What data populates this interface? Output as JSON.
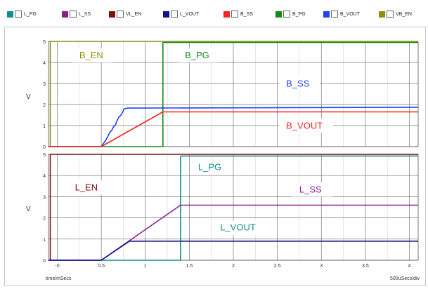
{
  "legend": [
    {
      "label": "L_PG",
      "color": "#138f8f"
    },
    {
      "label": "L_SS",
      "color": "#8e1e8e"
    },
    {
      "label": "VL_EN",
      "color": "#7e1010"
    },
    {
      "label": "L_VOUT",
      "color": "#10108a"
    },
    {
      "label": "B_SS",
      "color": "#ff2222"
    },
    {
      "label": "B_PG",
      "color": "#158a15"
    },
    {
      "label": "B_VOUT",
      "color": "#1f3fff"
    },
    {
      "label": "VB_EN",
      "color": "#8e8e12"
    }
  ],
  "chart_data": [
    {
      "type": "line",
      "ylabel": "V",
      "xlim": [
        -0.1,
        4.1
      ],
      "ylim": [
        0,
        5
      ],
      "yticks": [
        "0",
        "1",
        "2",
        "3",
        "4",
        "5"
      ],
      "grid": true,
      "series": [
        {
          "name": "B_EN",
          "color": "#8e8e12",
          "x": [
            -0.1,
            -0.08,
            -0.08,
            4.1
          ],
          "y": [
            0,
            0,
            5,
            5
          ]
        },
        {
          "name": "B_PG",
          "color": "#158a15",
          "x": [
            -0.1,
            1.2,
            1.2,
            4.1
          ],
          "y": [
            0,
            0,
            4.95,
            4.95
          ]
        },
        {
          "name": "B_SS",
          "color": "#1f3fff",
          "x": [
            -0.1,
            0.5,
            0.55,
            0.6,
            0.62,
            0.64,
            0.66,
            0.68,
            0.7,
            0.72,
            0.74,
            0.76,
            0.8,
            4.1
          ],
          "y": [
            0,
            0,
            0.3,
            0.7,
            0.78,
            0.95,
            1.02,
            1.25,
            1.4,
            1.48,
            1.62,
            1.8,
            1.83,
            1.87
          ]
        },
        {
          "name": "B_VOUT",
          "color": "#ff2222",
          "x": [
            -0.1,
            0.5,
            1.2,
            4.1
          ],
          "y": [
            0,
            0,
            1.65,
            1.65
          ]
        }
      ],
      "annotations": [
        {
          "text": "B_EN",
          "x": 0.25,
          "y": 4.2,
          "color": "#8e8e12"
        },
        {
          "text": "B_PG",
          "x": 1.45,
          "y": 4.2,
          "color": "#158a15"
        },
        {
          "text": "B_SS",
          "x": 2.6,
          "y": 2.85,
          "color": "#1f3fff"
        },
        {
          "text": "B_VOUT",
          "x": 2.6,
          "y": 0.85,
          "color": "#ff2222"
        }
      ]
    },
    {
      "type": "line",
      "ylabel": "V",
      "xlabel": "time/mSecs",
      "x_unit": "500uSecs/div",
      "xlim": [
        -0.1,
        4.1
      ],
      "ylim": [
        0,
        5
      ],
      "xticks": [
        "-0",
        "0.5",
        "1",
        "1.5",
        "2",
        "2.5",
        "3",
        "3.5",
        "4"
      ],
      "yticks": [
        "0",
        "1",
        "2",
        "3",
        "4",
        "5"
      ],
      "grid": true,
      "series": [
        {
          "name": "L_EN",
          "color": "#7e1010",
          "x": [
            -0.1,
            -0.08,
            -0.08,
            4.1
          ],
          "y": [
            0,
            0,
            5,
            5
          ]
        },
        {
          "name": "L_PG",
          "color": "#138f8f",
          "x": [
            -0.1,
            1.4,
            1.4,
            4.1
          ],
          "y": [
            0,
            0,
            4.92,
            4.92
          ]
        },
        {
          "name": "L_SS",
          "color": "#8e1e8e",
          "x": [
            -0.1,
            0.5,
            1.4,
            4.1
          ],
          "y": [
            0,
            0,
            2.6,
            2.6
          ]
        },
        {
          "name": "L_VOUT",
          "color": "#10108a",
          "x": [
            -0.1,
            0.5,
            0.82,
            4.1
          ],
          "y": [
            0,
            0,
            0.9,
            0.9
          ]
        }
      ],
      "annotations": [
        {
          "text": "L_EN",
          "x": 0.2,
          "y": 3.3,
          "color": "#7e1010"
        },
        {
          "text": "L_PG",
          "x": 1.6,
          "y": 4.25,
          "color": "#138f8f"
        },
        {
          "text": "L_SS",
          "x": 2.75,
          "y": 3.2,
          "color": "#8e1e8e"
        },
        {
          "text": "L_VOUT",
          "x": 1.85,
          "y": 1.4,
          "color": "#138f8f"
        }
      ]
    }
  ]
}
